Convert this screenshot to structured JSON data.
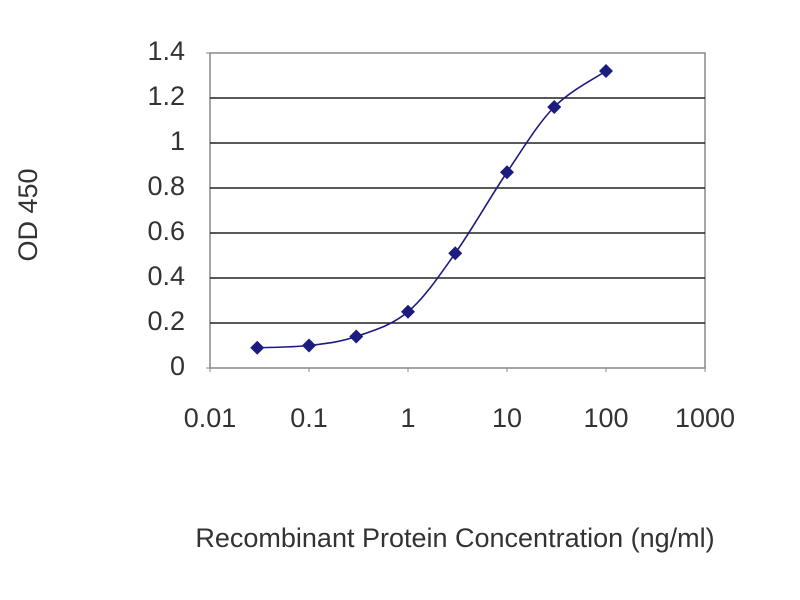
{
  "chart_data": {
    "type": "line",
    "x_label": "Recombinant Protein Concentration (ng/ml)",
    "y_label": "OD 450",
    "x": [
      0.03,
      0.1,
      0.3,
      1,
      3,
      10,
      30,
      100
    ],
    "series": [
      {
        "color": "#1c1c80",
        "values": [
          0.09,
          0.1,
          0.14,
          0.25,
          0.51,
          0.87,
          1.16,
          1.32
        ]
      }
    ],
    "xscale": "log",
    "xlim": [
      0.01,
      1000
    ],
    "xticks": [
      0.01,
      0.1,
      1,
      10,
      100,
      1000
    ],
    "ylim": [
      0,
      1.4
    ],
    "yticks": [
      0,
      0.2,
      0.4,
      0.6,
      0.8,
      1,
      1.2,
      1.4
    ],
    "grid": true
  }
}
